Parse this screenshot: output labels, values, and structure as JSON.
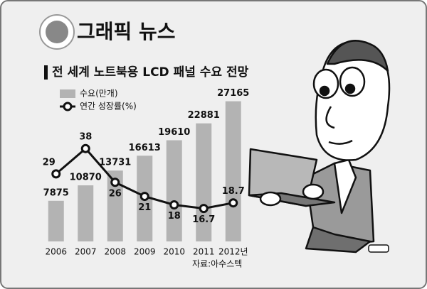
{
  "header": {
    "title": "그래픽 뉴스"
  },
  "chart_data": {
    "type": "bar",
    "title": "전 세계 노트북용 LCD 패널 수요 전망",
    "categories": [
      "2006",
      "2007",
      "2008",
      "2009",
      "2010",
      "2011",
      "2012년"
    ],
    "series": [
      {
        "name": "수요(만개)",
        "type": "bar",
        "color": "#b3b3b3",
        "values": [
          7875,
          10870,
          13731,
          16613,
          19610,
          22881,
          27165
        ]
      },
      {
        "name": "연간 성장률(%)",
        "type": "line",
        "axis": "y2",
        "color": "#111111",
        "values": [
          29,
          38,
          26,
          21,
          18,
          16.7,
          18.7
        ]
      }
    ],
    "ylim": [
      0,
      30000
    ],
    "y2lim": [
      5,
      60
    ],
    "grid": false,
    "source": "자료:아수스텍"
  }
}
